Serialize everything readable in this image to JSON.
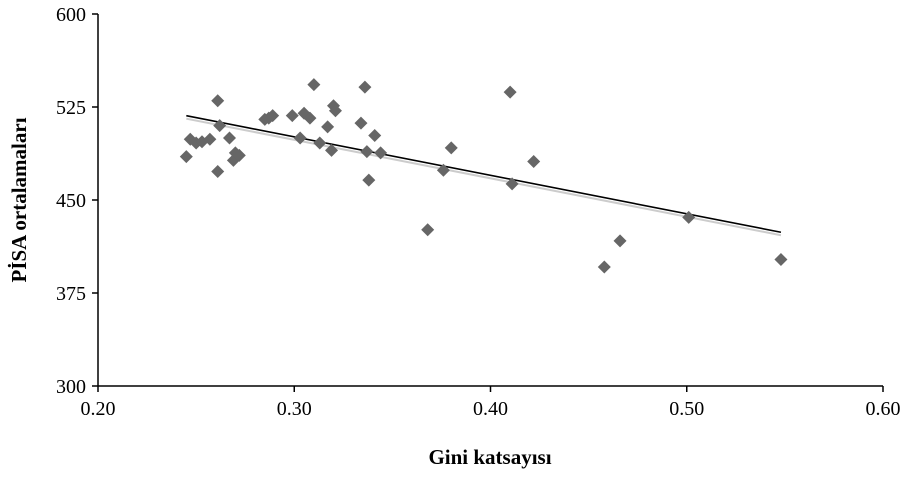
{
  "chart_data": {
    "type": "scatter",
    "title": "",
    "xlabel": "Gini katsayısı",
    "ylabel": "PİSA ortalamaları",
    "xlim": [
      0.2,
      0.6
    ],
    "ylim": [
      300,
      600
    ],
    "x_ticks": [
      "0.20",
      "0.30",
      "0.40",
      "0.50",
      "0.60"
    ],
    "y_ticks": [
      "300",
      "375",
      "450",
      "525",
      "600"
    ],
    "grid": false,
    "legend": "none",
    "marker": "diamond",
    "marker_color": "#666666",
    "trendline": {
      "type": "linear",
      "color": "#000000",
      "x": [
        0.245,
        0.548
      ],
      "y": [
        518,
        424
      ]
    },
    "points": [
      {
        "x": 0.245,
        "y": 485
      },
      {
        "x": 0.247,
        "y": 499
      },
      {
        "x": 0.25,
        "y": 496
      },
      {
        "x": 0.253,
        "y": 497
      },
      {
        "x": 0.257,
        "y": 499
      },
      {
        "x": 0.261,
        "y": 530
      },
      {
        "x": 0.262,
        "y": 510
      },
      {
        "x": 0.261,
        "y": 473
      },
      {
        "x": 0.267,
        "y": 500
      },
      {
        "x": 0.269,
        "y": 482
      },
      {
        "x": 0.27,
        "y": 488
      },
      {
        "x": 0.272,
        "y": 486
      },
      {
        "x": 0.285,
        "y": 515
      },
      {
        "x": 0.287,
        "y": 516
      },
      {
        "x": 0.289,
        "y": 518
      },
      {
        "x": 0.299,
        "y": 518
      },
      {
        "x": 0.303,
        "y": 500
      },
      {
        "x": 0.305,
        "y": 520
      },
      {
        "x": 0.308,
        "y": 516
      },
      {
        "x": 0.31,
        "y": 543
      },
      {
        "x": 0.313,
        "y": 496
      },
      {
        "x": 0.317,
        "y": 509
      },
      {
        "x": 0.319,
        "y": 490
      },
      {
        "x": 0.32,
        "y": 526
      },
      {
        "x": 0.321,
        "y": 522
      },
      {
        "x": 0.334,
        "y": 512
      },
      {
        "x": 0.336,
        "y": 541
      },
      {
        "x": 0.337,
        "y": 489
      },
      {
        "x": 0.338,
        "y": 466
      },
      {
        "x": 0.341,
        "y": 502
      },
      {
        "x": 0.344,
        "y": 488
      },
      {
        "x": 0.368,
        "y": 426
      },
      {
        "x": 0.376,
        "y": 474
      },
      {
        "x": 0.38,
        "y": 492
      },
      {
        "x": 0.41,
        "y": 537
      },
      {
        "x": 0.411,
        "y": 463
      },
      {
        "x": 0.422,
        "y": 481
      },
      {
        "x": 0.458,
        "y": 396
      },
      {
        "x": 0.466,
        "y": 417
      },
      {
        "x": 0.501,
        "y": 436
      },
      {
        "x": 0.548,
        "y": 402
      }
    ]
  }
}
